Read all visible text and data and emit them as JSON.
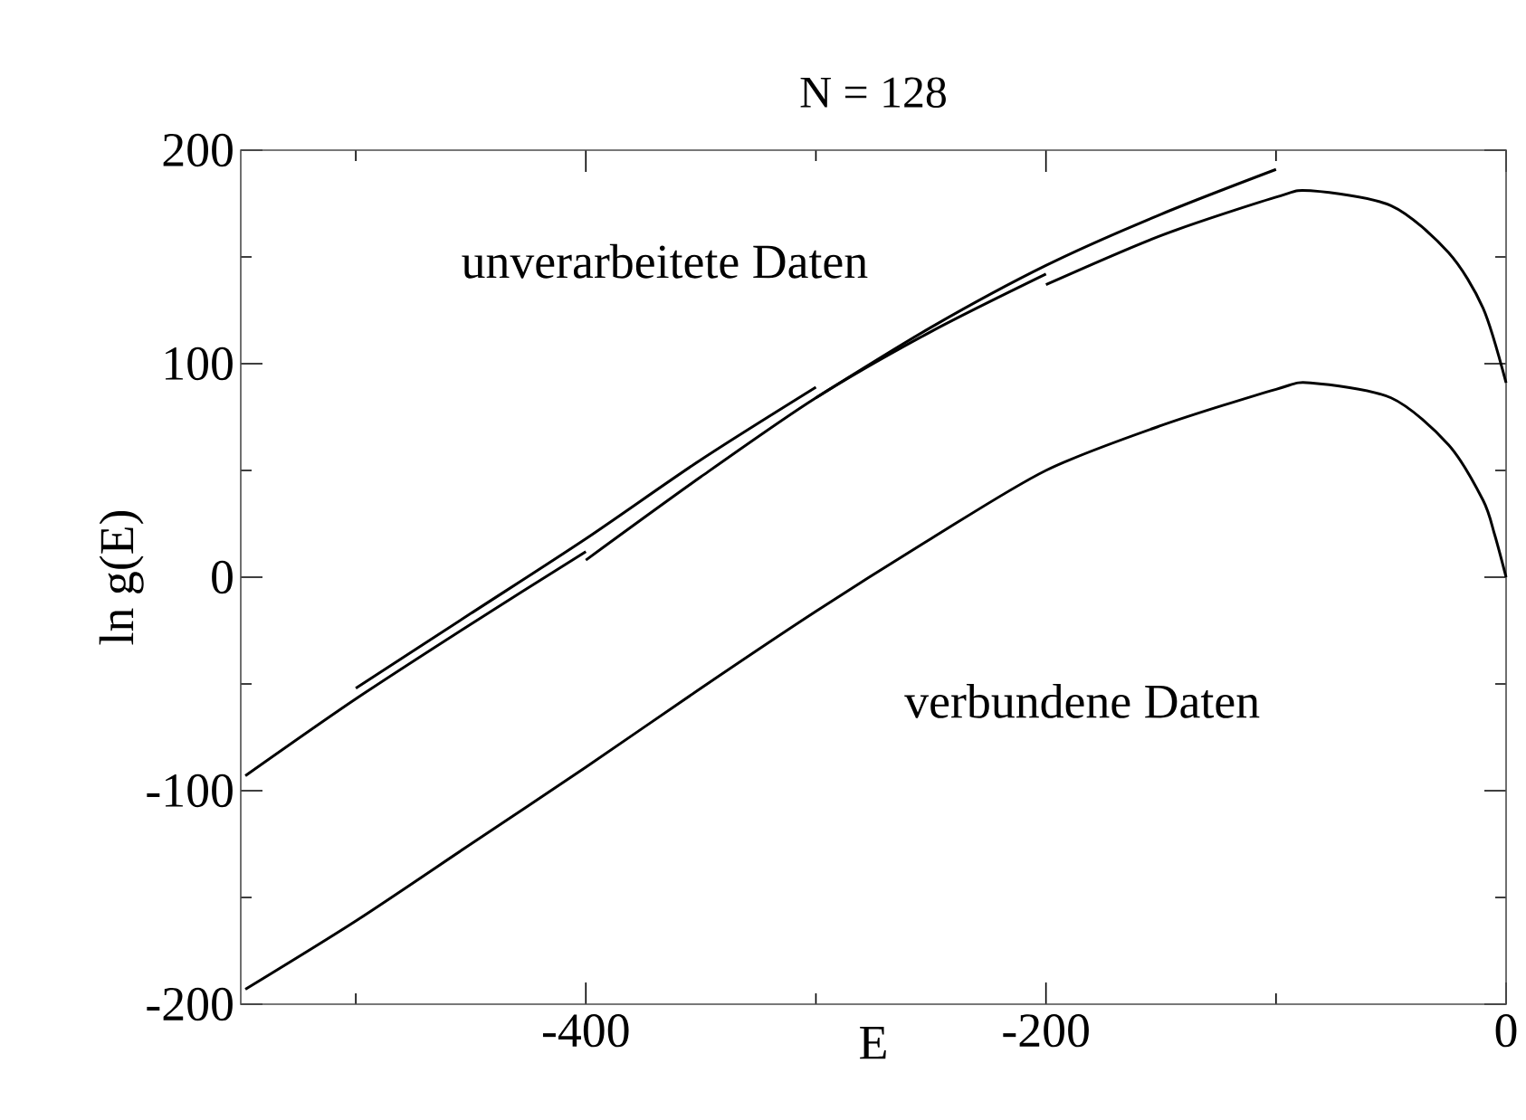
{
  "chart_data": {
    "type": "line",
    "title": "N = 128",
    "xlabel": "E",
    "ylabel": "ln g(E)",
    "xlim": [
      -550,
      0
    ],
    "ylim": [
      -200,
      200
    ],
    "xticks": [
      {
        "value": -500,
        "label": null
      },
      -400,
      {
        "value": -300,
        "label": null
      },
      -200,
      {
        "value": -100,
        "label": null
      },
      0
    ],
    "yticks": [
      -200,
      {
        "value": -150,
        "label": null
      },
      -100,
      {
        "value": -50,
        "label": null
      },
      0,
      {
        "value": 50,
        "label": null
      },
      100,
      {
        "value": 150,
        "label": null
      },
      200
    ],
    "marker": "none",
    "line_style": "solid",
    "series": [
      {
        "color": "#000000",
        "x": [
          -548,
          -500,
          -450,
          -400
        ],
        "values": [
          -93,
          -57,
          -22,
          12
        ]
      },
      {
        "color": "#000000",
        "x": [
          -500,
          -450,
          -400,
          -350,
          -300
        ],
        "values": [
          -52,
          -17,
          18,
          55,
          89
        ]
      },
      {
        "color": "#000000",
        "x": [
          -400,
          -350,
          -300,
          -250,
          -200
        ],
        "values": [
          8,
          47,
          84,
          115,
          142
        ]
      },
      {
        "color": "#000000",
        "x": [
          -300,
          -250,
          -200,
          -150,
          -100
        ],
        "values": [
          84,
          117,
          146,
          170,
          191
        ]
      },
      {
        "color": "#000000",
        "x": [
          -200,
          -150,
          -100,
          -85,
          -50,
          -25,
          -10,
          0
        ],
        "values": [
          137,
          160,
          178,
          181,
          174,
          152,
          126,
          91
        ]
      },
      {
        "color": "#000000",
        "x": [
          -548,
          -500,
          -450,
          -400,
          -350,
          -300,
          -250,
          -200,
          -150,
          -100,
          -85,
          -50,
          -25,
          -10,
          -5,
          0
        ],
        "values": [
          -193,
          -161,
          -125,
          -89,
          -52,
          -16,
          18,
          50,
          71,
          88,
          91,
          84,
          62,
          36,
          20,
          0
        ]
      }
    ],
    "annotations": [
      "unverarbeitete Daten",
      "verbundene Daten"
    ]
  }
}
